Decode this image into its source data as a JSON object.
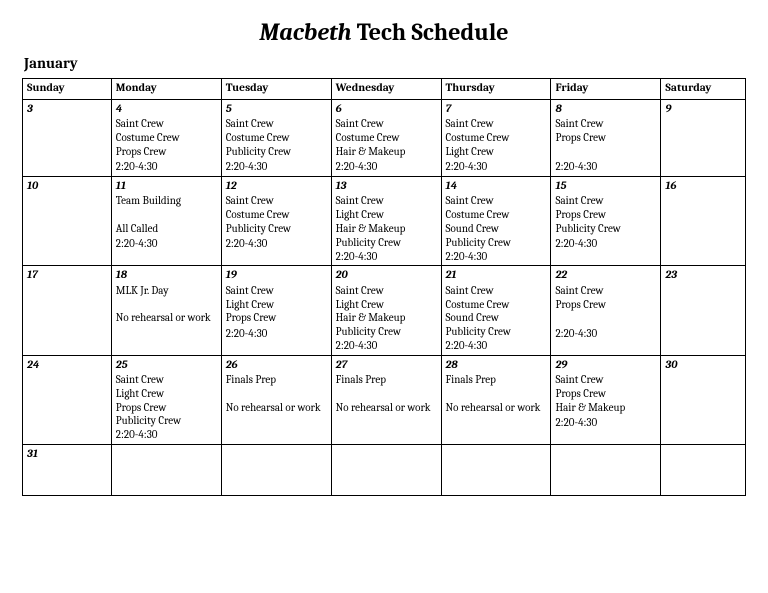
{
  "title_italic": "Macbeth",
  "title_rest": " Tech Schedule",
  "month": "January",
  "day_headers": [
    "Sunday",
    "Monday",
    "Tuesday",
    "Wednesday",
    "Thursday",
    "Friday",
    "Saturday"
  ],
  "weeks": [
    [
      {
        "num": "3",
        "lines": "",
        "time": ""
      },
      {
        "num": "4",
        "lines": "Saint Crew\nCostume Crew\nProps Crew",
        "time": "2:20-4:30"
      },
      {
        "num": "5",
        "lines": "Saint Crew\nCostume Crew\nPublicity Crew",
        "time": "2:20-4:30"
      },
      {
        "num": "6",
        "lines": "Saint Crew\nCostume Crew\nHair & Makeup",
        "time": "2:20-4:30"
      },
      {
        "num": "7",
        "lines": "Saint Crew\nCostume Crew\nLight Crew",
        "time": "2:20-4:30"
      },
      {
        "num": "8",
        "lines": "Saint Crew\nProps Crew",
        "time": "2:20-4:30"
      },
      {
        "num": "9",
        "lines": "",
        "time": ""
      }
    ],
    [
      {
        "num": "10",
        "lines": "",
        "time": ""
      },
      {
        "num": "11",
        "lines": "Team Building\n\nAll Called",
        "time": "2:20-4:30"
      },
      {
        "num": "12",
        "lines": "Saint Crew\nCostume Crew\nPublicity Crew",
        "time": "2:20-4:30"
      },
      {
        "num": "13",
        "lines": "Saint Crew\nLight Crew\nHair & Makeup\nPublicity Crew",
        "time": "2:20-4:30"
      },
      {
        "num": "14",
        "lines": "Saint Crew\nCostume Crew\nSound Crew\nPublicity Crew",
        "time": "2:20-4:30"
      },
      {
        "num": "15",
        "lines": "Saint Crew\nProps Crew\nPublicity Crew",
        "time": "2:20-4:30"
      },
      {
        "num": "16",
        "lines": "",
        "time": ""
      }
    ],
    [
      {
        "num": "17",
        "lines": "",
        "time": ""
      },
      {
        "num": "18",
        "lines": "MLK Jr. Day\n\nNo rehearsal or work",
        "time": ""
      },
      {
        "num": "19",
        "lines": "Saint Crew\nLight Crew\nProps Crew",
        "time": "2:20-4:30"
      },
      {
        "num": "20",
        "lines": "Saint Crew\nLight Crew\nHair & Makeup\nPublicity Crew",
        "time": "2:20-4:30"
      },
      {
        "num": "21",
        "lines": "Saint Crew\nCostume Crew\nSound Crew\nPublicity Crew",
        "time": "2:20-4:30"
      },
      {
        "num": "22",
        "lines": "Saint Crew\nProps Crew",
        "time": "2:20-4:30"
      },
      {
        "num": "23",
        "lines": "",
        "time": ""
      }
    ],
    [
      {
        "num": "24",
        "lines": "",
        "time": ""
      },
      {
        "num": "25",
        "lines": "Saint Crew\nLight Crew\nProps Crew\nPublicity Crew",
        "time": "2:20-4:30"
      },
      {
        "num": "26",
        "lines": "Finals Prep\n\nNo rehearsal or work",
        "time": ""
      },
      {
        "num": "27",
        "lines": "Finals Prep\n\nNo rehearsal or work",
        "time": ""
      },
      {
        "num": "28",
        "lines": "Finals Prep\n\nNo rehearsal or work",
        "time": ""
      },
      {
        "num": "29",
        "lines": "Saint Crew\nProps Crew\nHair & Makeup",
        "time": "2:20-4:30"
      },
      {
        "num": "30",
        "lines": "",
        "time": ""
      }
    ],
    [
      {
        "num": "31",
        "lines": "",
        "time": ""
      },
      {
        "num": "",
        "lines": "",
        "time": ""
      },
      {
        "num": "",
        "lines": "",
        "time": ""
      },
      {
        "num": "",
        "lines": "",
        "time": ""
      },
      {
        "num": "",
        "lines": "",
        "time": ""
      },
      {
        "num": "",
        "lines": "",
        "time": ""
      },
      {
        "num": "",
        "lines": "",
        "time": ""
      }
    ]
  ]
}
